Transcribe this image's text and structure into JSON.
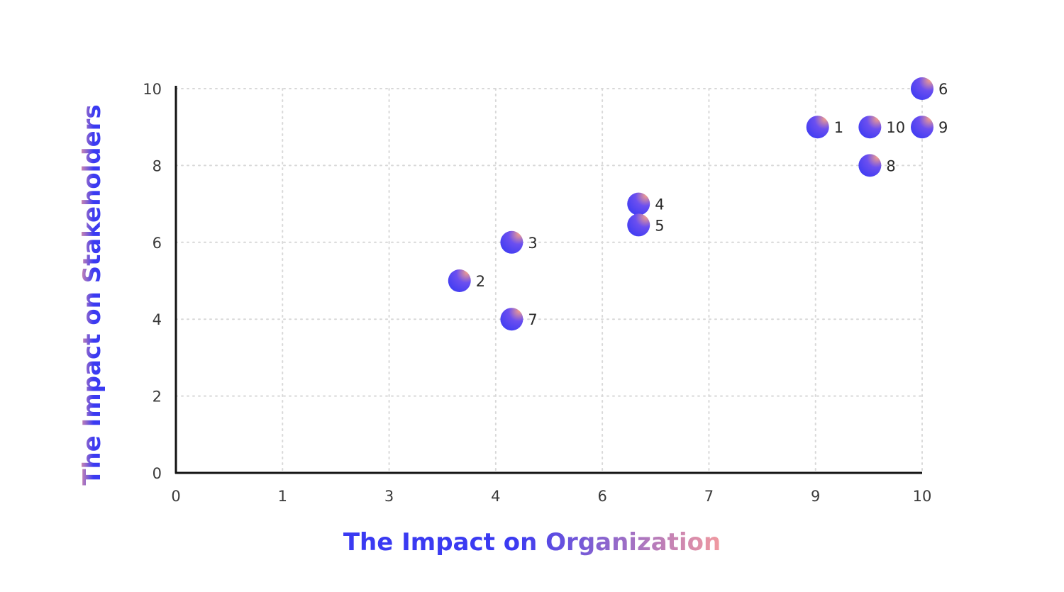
{
  "chart_data": {
    "type": "scatter",
    "xlabel": "The Impact on Organization",
    "ylabel": "The Impact on Stakeholders",
    "x_ticks": [
      {
        "value": 0,
        "label": "0"
      },
      {
        "value": 1,
        "label": "1"
      },
      {
        "value": 2,
        "label": "3"
      },
      {
        "value": 3,
        "label": "4"
      },
      {
        "value": 4,
        "label": "6"
      },
      {
        "value": 5,
        "label": "7"
      },
      {
        "value": 6,
        "label": "9"
      },
      {
        "value": 7,
        "label": "10"
      }
    ],
    "y_ticks": [
      0,
      2,
      4,
      6,
      8,
      10
    ],
    "xlim": [
      0,
      10
    ],
    "ylim": [
      0,
      10
    ],
    "grid": true,
    "points": [
      {
        "label": "1",
        "x": 8.6,
        "y": 9
      },
      {
        "label": "2",
        "x": 3.8,
        "y": 5
      },
      {
        "label": "3",
        "x": 4.5,
        "y": 6
      },
      {
        "label": "4",
        "x": 6.2,
        "y": 7
      },
      {
        "label": "5",
        "x": 6.2,
        "y": 6.45
      },
      {
        "label": "6",
        "x": 10,
        "y": 10
      },
      {
        "label": "7",
        "x": 4.5,
        "y": 4
      },
      {
        "label": "8",
        "x": 9.3,
        "y": 8
      },
      {
        "label": "9",
        "x": 10,
        "y": 9
      },
      {
        "label": "10",
        "x": 9.3,
        "y": 9
      }
    ],
    "colors": {
      "point_gradient_start": "#f6a08a",
      "point_gradient_mid": "#6b4ff0",
      "point_gradient_end": "#3a3af2",
      "title_gradient_start": "#3a3af2",
      "title_gradient_end": "#f19aa0",
      "axis": "#111111",
      "grid": "#d8d8d8"
    }
  }
}
